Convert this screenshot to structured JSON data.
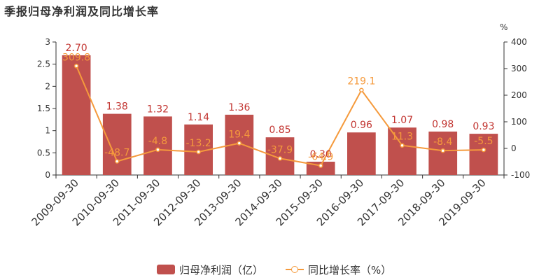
{
  "title": "季报归母净利润及同比增长率",
  "right_unit": "%",
  "legend": {
    "bar_label": "归母净利润（亿）",
    "line_label": "同比增长率（%）"
  },
  "colors": {
    "bar": "#c0504d",
    "bar_label": "#c23531",
    "line": "#f59a3c"
  },
  "chart_data": {
    "type": "bar",
    "categories": [
      "2009-09-30",
      "2010-09-30",
      "2011-09-30",
      "2012-09-30",
      "2013-09-30",
      "2014-09-30",
      "2015-09-30",
      "2016-09-30",
      "2017-09-30",
      "2018-09-30",
      "2019-09-30"
    ],
    "series": [
      {
        "name": "归母净利润（亿）",
        "type": "bar",
        "axis": "left",
        "values": [
          2.7,
          1.38,
          1.32,
          1.14,
          1.36,
          0.85,
          0.3,
          0.96,
          1.07,
          0.98,
          0.93
        ],
        "labels": [
          "2.70",
          "1.38",
          "1.32",
          "1.14",
          "1.36",
          "0.85",
          "0.30",
          "0.96",
          "1.07",
          "0.98",
          "0.93"
        ]
      },
      {
        "name": "同比增长率（%）",
        "type": "line",
        "axis": "right",
        "values": [
          309.8,
          -48.7,
          -4.8,
          -13.2,
          19.4,
          -37.9,
          -64.9,
          219.1,
          11.3,
          -8.4,
          -5.5
        ],
        "labels": [
          "309.8",
          "-48.7",
          "-4.8",
          "-13.2",
          "19.4",
          "-37.9",
          "-64.9",
          "219.1",
          "11.3",
          "-8.4",
          "-5.5"
        ]
      }
    ],
    "ylim_left": [
      0,
      3
    ],
    "yticks_left": [
      "0",
      "0.5",
      "1",
      "1.5",
      "2",
      "2.5",
      "3"
    ],
    "ylim_right": [
      -100,
      400
    ],
    "yticks_right": [
      "-100",
      "0",
      "100",
      "200",
      "300",
      "400"
    ],
    "grid": false,
    "legend_position": "bottom-center"
  }
}
